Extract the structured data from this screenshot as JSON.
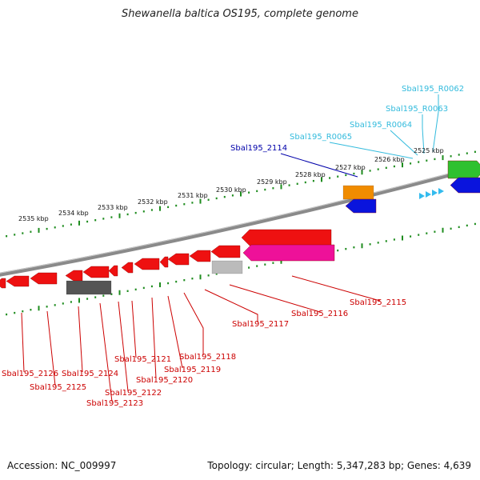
{
  "title": "Shewanella baltica OS195, complete genome",
  "accession": "Accession: NC_009997",
  "summary": "Topology: circular; Length: 5,347,283 bp; Genes: 4,639",
  "colors": {
    "backbone": "#8a8a8a",
    "ticks": "#1e8c1e",
    "cds": "#ee1111",
    "cds_label": "#cc0000",
    "pseudo_gene": "#555555",
    "hypothetical": "#bbbbbb",
    "magenta_gene": "#ee1199",
    "orange_gene": "#f08c00",
    "blue_gene": "#0a14dd",
    "green_gene": "#2fc12f",
    "rna": "#33bbee",
    "rna_label": "#33bbdd",
    "forward_label": "#0000aa"
  },
  "tick_labels": [
    "2525 kbp",
    "2526 kbp",
    "2527 kbp",
    "2528 kbp",
    "2529 kbp",
    "2530 kbp",
    "2531 kbp",
    "2532 kbp",
    "2533 kbp",
    "2534 kbp",
    "2535 kbp"
  ],
  "forward_labels": [
    "Sbal195_2114"
  ],
  "rna_labels": [
    "Sbal195_R0062",
    "Sbal195_R0063",
    "Sbal195_R0064",
    "Sbal195_R0065"
  ],
  "reverse_labels": [
    "Sbal195_2115",
    "Sbal195_2116",
    "Sbal195_2117",
    "Sbal195_2118",
    "Sbal195_2119",
    "Sbal195_2120",
    "Sbal195_2121",
    "Sbal195_2122",
    "Sbal195_2123",
    "Sbal195_2124",
    "Sbal195_2125",
    "Sbal195_2126"
  ]
}
